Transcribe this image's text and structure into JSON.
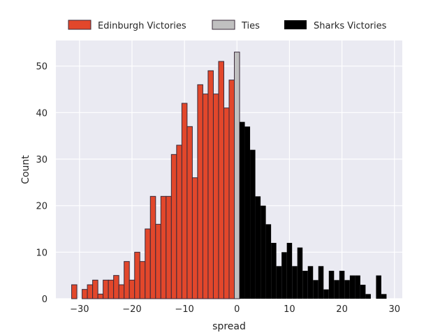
{
  "colors": {
    "background": "#eaeaf2",
    "grid": "#ffffff",
    "edinburgh": "#e2472b",
    "ties": "#c0c0c0",
    "sharks": "#000000",
    "edge": "#3a2a3a"
  },
  "chart_data": {
    "type": "bar",
    "title": "",
    "xlabel": "spread",
    "ylabel": "Count",
    "xlim": [
      -34.5,
      31.5
    ],
    "ylim": [
      0,
      55.5
    ],
    "grid": true,
    "legend_position": "top",
    "xticks": [
      -30,
      -20,
      -10,
      0,
      10,
      20,
      30
    ],
    "yticks": [
      0,
      10,
      20,
      30,
      40,
      50
    ],
    "xtick_labels": [
      "−30",
      "−20",
      "−10",
      "0",
      "10",
      "20",
      "30"
    ],
    "ytick_labels": [
      "0",
      "10",
      "20",
      "30",
      "40",
      "50"
    ],
    "series": [
      {
        "name": "Edinburgh Victories",
        "color_key": "edinburgh",
        "x": [
          -31,
          -29,
          -28,
          -27,
          -26,
          -25,
          -24,
          -23,
          -22,
          -21,
          -20,
          -19,
          -18,
          -17,
          -16,
          -15,
          -14,
          -13,
          -12,
          -11,
          -10,
          -9,
          -8,
          -7,
          -6,
          -5,
          -4,
          -3,
          -2,
          -1
        ],
        "values": [
          3,
          2,
          3,
          4,
          1,
          4,
          4,
          5,
          3,
          8,
          4,
          10,
          8,
          15,
          22,
          16,
          22,
          22,
          31,
          33,
          42,
          37,
          26,
          46,
          44,
          49,
          44,
          51,
          41,
          47
        ]
      },
      {
        "name": "Ties",
        "color_key": "ties",
        "x": [
          0
        ],
        "values": [
          53
        ]
      },
      {
        "name": "Sharks Victories",
        "color_key": "sharks",
        "x": [
          1,
          2,
          3,
          4,
          5,
          6,
          7,
          8,
          9,
          10,
          11,
          12,
          13,
          14,
          15,
          16,
          17,
          18,
          19,
          20,
          21,
          22,
          23,
          24,
          25,
          27,
          28
        ],
        "values": [
          38,
          37,
          32,
          22,
          20,
          16,
          12,
          7,
          10,
          12,
          7,
          11,
          6,
          7,
          4,
          7,
          2,
          6,
          4,
          6,
          4,
          5,
          5,
          3,
          1,
          5,
          1
        ]
      }
    ]
  }
}
